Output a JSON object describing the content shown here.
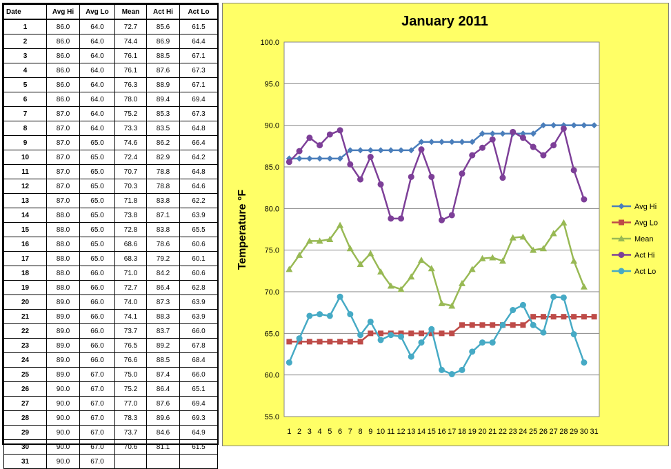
{
  "table": {
    "headers": [
      "Date",
      "Avg Hi",
      "Avg Lo",
      "Mean",
      "Act Hi",
      "Act Lo"
    ],
    "rows": [
      [
        "1",
        "86.0",
        "64.0",
        "72.7",
        "85.6",
        "61.5"
      ],
      [
        "2",
        "86.0",
        "64.0",
        "74.4",
        "86.9",
        "64.4"
      ],
      [
        "3",
        "86.0",
        "64.0",
        "76.1",
        "88.5",
        "67.1"
      ],
      [
        "4",
        "86.0",
        "64.0",
        "76.1",
        "87.6",
        "67.3"
      ],
      [
        "5",
        "86.0",
        "64.0",
        "76.3",
        "88.9",
        "67.1"
      ],
      [
        "6",
        "86.0",
        "64.0",
        "78.0",
        "89.4",
        "69.4"
      ],
      [
        "7",
        "87.0",
        "64.0",
        "75.2",
        "85.3",
        "67.3"
      ],
      [
        "8",
        "87.0",
        "64.0",
        "73.3",
        "83.5",
        "64.8"
      ],
      [
        "9",
        "87.0",
        "65.0",
        "74.6",
        "86.2",
        "66.4"
      ],
      [
        "10",
        "87.0",
        "65.0",
        "72.4",
        "82.9",
        "64.2"
      ],
      [
        "11",
        "87.0",
        "65.0",
        "70.7",
        "78.8",
        "64.8"
      ],
      [
        "12",
        "87.0",
        "65.0",
        "70.3",
        "78.8",
        "64.6"
      ],
      [
        "13",
        "87.0",
        "65.0",
        "71.8",
        "83.8",
        "62.2"
      ],
      [
        "14",
        "88.0",
        "65.0",
        "73.8",
        "87.1",
        "63.9"
      ],
      [
        "15",
        "88.0",
        "65.0",
        "72.8",
        "83.8",
        "65.5"
      ],
      [
        "16",
        "88.0",
        "65.0",
        "68.6",
        "78.6",
        "60.6"
      ],
      [
        "17",
        "88.0",
        "65.0",
        "68.3",
        "79.2",
        "60.1"
      ],
      [
        "18",
        "88.0",
        "66.0",
        "71.0",
        "84.2",
        "60.6"
      ],
      [
        "19",
        "88.0",
        "66.0",
        "72.7",
        "86.4",
        "62.8"
      ],
      [
        "20",
        "89.0",
        "66.0",
        "74.0",
        "87.3",
        "63.9"
      ],
      [
        "21",
        "89.0",
        "66.0",
        "74.1",
        "88.3",
        "63.9"
      ],
      [
        "22",
        "89.0",
        "66.0",
        "73.7",
        "83.7",
        "66.0"
      ],
      [
        "23",
        "89.0",
        "66.0",
        "76.5",
        "89.2",
        "67.8"
      ],
      [
        "24",
        "89.0",
        "66.0",
        "76.6",
        "88.5",
        "68.4"
      ],
      [
        "25",
        "89.0",
        "67.0",
        "75.0",
        "87.4",
        "66.0"
      ],
      [
        "26",
        "90.0",
        "67.0",
        "75.2",
        "86.4",
        "65.1"
      ],
      [
        "27",
        "90.0",
        "67.0",
        "77.0",
        "87.6",
        "69.4"
      ],
      [
        "28",
        "90.0",
        "67.0",
        "78.3",
        "89.6",
        "69.3"
      ],
      [
        "29",
        "90.0",
        "67.0",
        "73.7",
        "84.6",
        "64.9"
      ],
      [
        "30",
        "90.0",
        "67.0",
        "70.6",
        "81.1",
        "61.5"
      ],
      [
        "31",
        "90.0",
        "67.0",
        "",
        "",
        ""
      ]
    ]
  },
  "chart_data": {
    "type": "line",
    "title": "January 2011",
    "xlabel": "",
    "ylabel": "Temperature °F",
    "ylim": [
      55.0,
      100.0
    ],
    "yticks": [
      "55.0",
      "60.0",
      "65.0",
      "70.0",
      "75.0",
      "80.0",
      "85.0",
      "90.0",
      "95.0",
      "100.0"
    ],
    "grid": "horizontal",
    "legend_position": "right",
    "x": [
      "1",
      "2",
      "3",
      "4",
      "5",
      "6",
      "7",
      "8",
      "9",
      "10",
      "11",
      "12",
      "13",
      "14",
      "15",
      "16",
      "17",
      "18",
      "19",
      "20",
      "21",
      "22",
      "23",
      "24",
      "25",
      "26",
      "27",
      "28",
      "29",
      "30",
      "31"
    ],
    "series": [
      {
        "name": "Avg Hi",
        "color": "#4a7ebb",
        "marker": "diamond",
        "values": [
          86.0,
          86.0,
          86.0,
          86.0,
          86.0,
          86.0,
          87.0,
          87.0,
          87.0,
          87.0,
          87.0,
          87.0,
          87.0,
          88.0,
          88.0,
          88.0,
          88.0,
          88.0,
          88.0,
          89.0,
          89.0,
          89.0,
          89.0,
          89.0,
          89.0,
          90.0,
          90.0,
          90.0,
          90.0,
          90.0,
          90.0
        ]
      },
      {
        "name": "Avg Lo",
        "color": "#be4b48",
        "marker": "square",
        "values": [
          64.0,
          64.0,
          64.0,
          64.0,
          64.0,
          64.0,
          64.0,
          64.0,
          65.0,
          65.0,
          65.0,
          65.0,
          65.0,
          65.0,
          65.0,
          65.0,
          65.0,
          66.0,
          66.0,
          66.0,
          66.0,
          66.0,
          66.0,
          66.0,
          67.0,
          67.0,
          67.0,
          67.0,
          67.0,
          67.0,
          67.0
        ]
      },
      {
        "name": "Mean",
        "color": "#98b954",
        "marker": "triangle",
        "values": [
          72.7,
          74.4,
          76.1,
          76.1,
          76.3,
          78.0,
          75.2,
          73.3,
          74.6,
          72.4,
          70.7,
          70.3,
          71.8,
          73.8,
          72.8,
          68.6,
          68.3,
          71.0,
          72.7,
          74.0,
          74.1,
          73.7,
          76.5,
          76.6,
          75.0,
          75.2,
          77.0,
          78.3,
          73.7,
          70.6,
          null
        ]
      },
      {
        "name": "Act Hi",
        "color": "#7d3f98",
        "marker": "circle",
        "values": [
          85.6,
          86.9,
          88.5,
          87.6,
          88.9,
          89.4,
          85.3,
          83.5,
          86.2,
          82.9,
          78.8,
          78.8,
          83.8,
          87.1,
          83.8,
          78.6,
          79.2,
          84.2,
          86.4,
          87.3,
          88.3,
          83.7,
          89.2,
          88.5,
          87.4,
          86.4,
          87.6,
          89.6,
          84.6,
          81.1,
          null
        ]
      },
      {
        "name": "Act Lo",
        "color": "#46aac5",
        "marker": "circle",
        "values": [
          61.5,
          64.4,
          67.1,
          67.3,
          67.1,
          69.4,
          67.3,
          64.8,
          66.4,
          64.2,
          64.8,
          64.6,
          62.2,
          63.9,
          65.5,
          60.6,
          60.1,
          60.6,
          62.8,
          63.9,
          63.9,
          66.0,
          67.8,
          68.4,
          66.0,
          65.1,
          69.4,
          69.3,
          64.9,
          61.5,
          null
        ]
      }
    ]
  }
}
